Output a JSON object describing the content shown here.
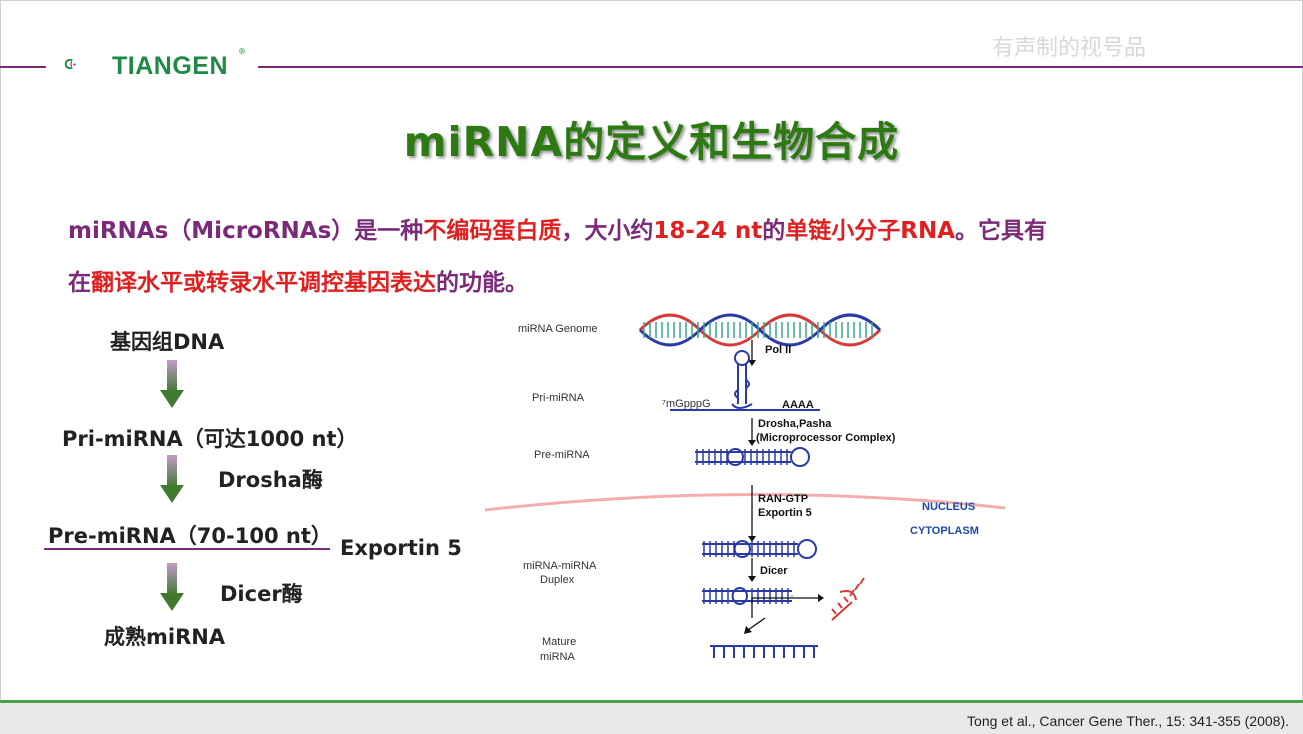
{
  "header": {
    "logo_text": "TIANGEN",
    "logo_reg": "®",
    "watermark": "有声制的视号品"
  },
  "title": "miRNA的定义和生物合成",
  "intro": {
    "line1": [
      {
        "text": "miRNAs（MicroRNAs）是一种",
        "color": "purple"
      },
      {
        "text": "不编码蛋白质",
        "color": "red"
      },
      {
        "text": "，大小约",
        "color": "purple"
      },
      {
        "text": "18-24 nt",
        "color": "red"
      },
      {
        "text": "的",
        "color": "purple"
      },
      {
        "text": "单链小分子RNA",
        "color": "red"
      },
      {
        "text": "。它具有",
        "color": "purple"
      }
    ],
    "line2": [
      {
        "text": "在",
        "color": "purple"
      },
      {
        "text": "翻译水平或转录水平调控基因表达",
        "color": "red"
      },
      {
        "text": "的功能。",
        "color": "purple"
      }
    ]
  },
  "flow": {
    "step1": "基因组DNA",
    "step2": "Pri-miRNA（可达1000 nt）",
    "enzyme1": "Drosha酶",
    "step3": "Pre-miRNA（70-100 nt）",
    "exporter": "Exportin 5",
    "enzyme2": "Dicer酶",
    "step4": "成熟miRNA"
  },
  "diagram": {
    "genome_label": "miRNA Genome",
    "pri_label": "Pri-miRNA",
    "pre_label": "Pre-miRNA",
    "duplex_label_1": "miRNA-miRNA",
    "duplex_label_2": "Duplex",
    "mature_label_1": "Mature",
    "mature_label_2": "miRNA",
    "pol": "Pol II",
    "cap": "⁷mGpppG",
    "polya": "AAAA",
    "drosha_1": "Drosha,Pasha",
    "drosha_2": "(Microprocessor Complex)",
    "ran_1": "RAN-GTP",
    "ran_2": "Exportin 5",
    "nucleus": "NUCLEUS",
    "cytoplasm": "CYTOPLASM",
    "dicer": "Dicer",
    "colors": {
      "strand_red": "#d63a3a",
      "strand_blue": "#2a3ba6",
      "rung_teal": "#3aa58a",
      "membrane": "#f08a8a",
      "stem": "#2a3ba6"
    }
  },
  "footer": {
    "citation": "Tong et al., Cancer Gene Ther., 15: 341-355 (2008)."
  }
}
